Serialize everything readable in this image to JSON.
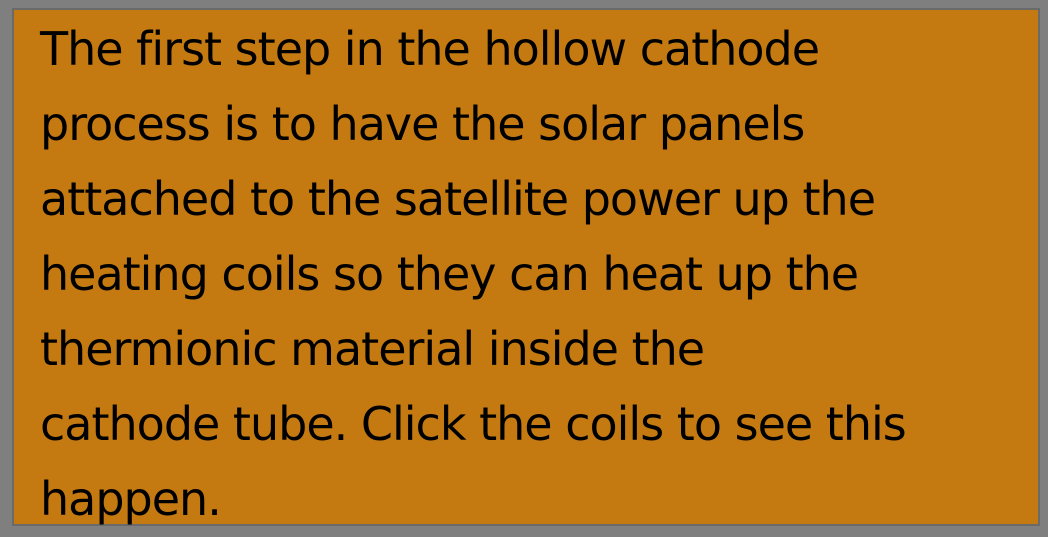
{
  "colors": {
    "frame_background": "#7f7f7f",
    "panel_background": "#c47a10",
    "text": "#000000"
  },
  "instruction_panel": {
    "lines": [
      "The first step in the hollow cathode",
      "process is to have the solar panels",
      "attached to the satellite power up the",
      "heating coils so they can heat up the",
      "thermionic material inside the",
      "cathode tube. Click the coils to see this",
      "happen."
    ]
  }
}
